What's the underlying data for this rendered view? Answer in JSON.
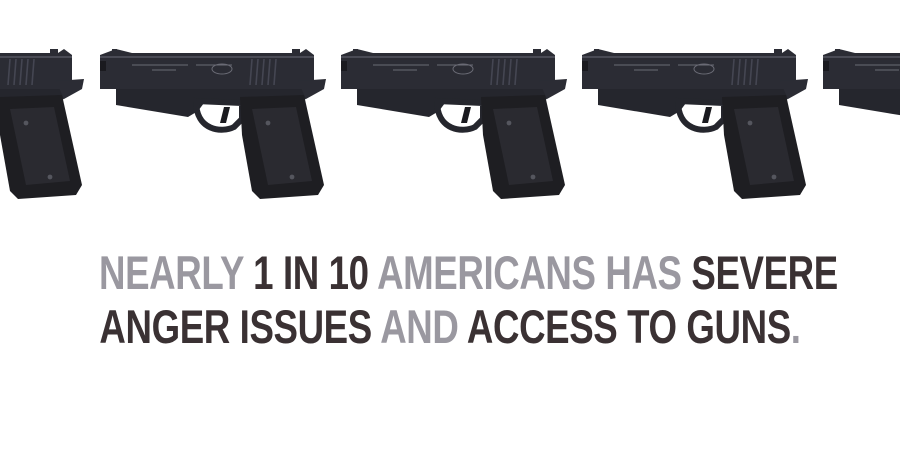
{
  "image": {
    "headline": {
      "line1": [
        {
          "text": "NEARLY ",
          "tone": "gray"
        },
        {
          "text": "1 IN 10 ",
          "tone": "dark"
        },
        {
          "text": "AMERICANS HAS ",
          "tone": "gray"
        },
        {
          "text": "SEVERE",
          "tone": "dark"
        }
      ],
      "line2": [
        {
          "text": "ANGER ISSUES ",
          "tone": "dark"
        },
        {
          "text": "AND ",
          "tone": "gray"
        },
        {
          "text": "ACCESS TO GUNS",
          "tone": "dark"
        },
        {
          "text": ".",
          "tone": "gray"
        }
      ]
    },
    "colors": {
      "gray": "#9a98a0",
      "dark": "#3a3133",
      "gun_body": "#2b2c34",
      "gun_grip": "#1e1e22"
    },
    "pistol_count": 5
  }
}
